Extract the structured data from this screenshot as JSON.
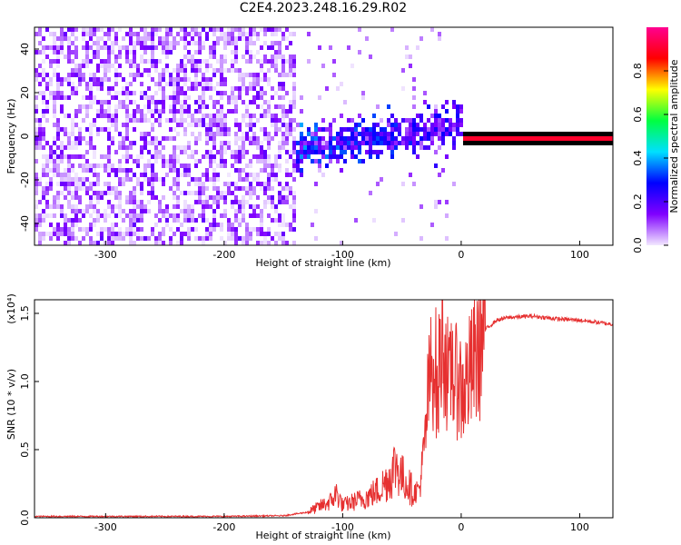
{
  "title": "C2E4.2023.248.16.29.R02",
  "chart_data": [
    {
      "type": "heatmap",
      "xlabel": "Height of straight line (km)",
      "ylabel": "Frequency (Hz)",
      "xlim": [
        -360,
        128
      ],
      "ylim": [
        -50,
        50
      ],
      "xticks": [
        -300,
        -200,
        -100,
        0,
        100
      ],
      "yticks": [
        -40,
        -20,
        0,
        20,
        40
      ],
      "grid": false,
      "colorbar": {
        "label": "Normalized spectral amplitude",
        "range": [
          0.0,
          1.0
        ],
        "ticks": [
          "0.0",
          "0.2",
          "0.4",
          "0.6",
          "0.8"
        ],
        "colors": [
          "#f2e8ff",
          "#8000ff",
          "#0000ff",
          "#00e0ff",
          "#00ff40",
          "#ffff00",
          "#ff0000",
          "#ff0090"
        ]
      },
      "features": {
        "noise_region_x": [
          -360,
          -140
        ],
        "scattered_region_x": [
          -180,
          0
        ],
        "tone_x": [
          0,
          128
        ],
        "tone_frequency": 0,
        "tone_amplitude": 0.9
      }
    },
    {
      "type": "line",
      "xlabel": "Height of straight line (km)",
      "ylabel": "SNR (10 * v/v)",
      "scale_label": "(x10⁴)",
      "xlim": [
        -360,
        128
      ],
      "ylim": [
        0.0,
        1.6
      ],
      "xticks": [
        -300,
        -200,
        -100,
        0,
        100
      ],
      "yticks": [
        "0.0",
        "0.5",
        "1.0",
        "1.5"
      ],
      "color": "#e63030",
      "series": [
        {
          "x": [
            -360,
            -300,
            -250,
            -200,
            -150,
            -130,
            -120,
            -110,
            -105,
            -100,
            -90,
            -80,
            -70,
            -60,
            -55,
            -50,
            -45,
            -40,
            -35,
            -30,
            -28,
            -25,
            -22,
            -20,
            -18,
            -15,
            -12,
            -10,
            -8,
            -5,
            -2,
            0,
            5,
            10,
            15,
            20,
            30,
            40,
            60,
            80,
            100,
            128
          ],
          "y": [
            0.01,
            0.01,
            0.01,
            0.01,
            0.015,
            0.04,
            0.08,
            0.12,
            0.18,
            0.09,
            0.12,
            0.15,
            0.2,
            0.3,
            0.4,
            0.3,
            0.25,
            0.18,
            0.22,
            0.6,
            0.9,
            1.1,
            1.2,
            0.8,
            1.2,
            1.35,
            1.1,
            0.9,
            1.2,
            0.95,
            1.1,
            0.9,
            1.0,
            1.1,
            1.25,
            1.38,
            1.45,
            1.47,
            1.48,
            1.46,
            1.45,
            1.42
          ]
        }
      ]
    }
  ]
}
